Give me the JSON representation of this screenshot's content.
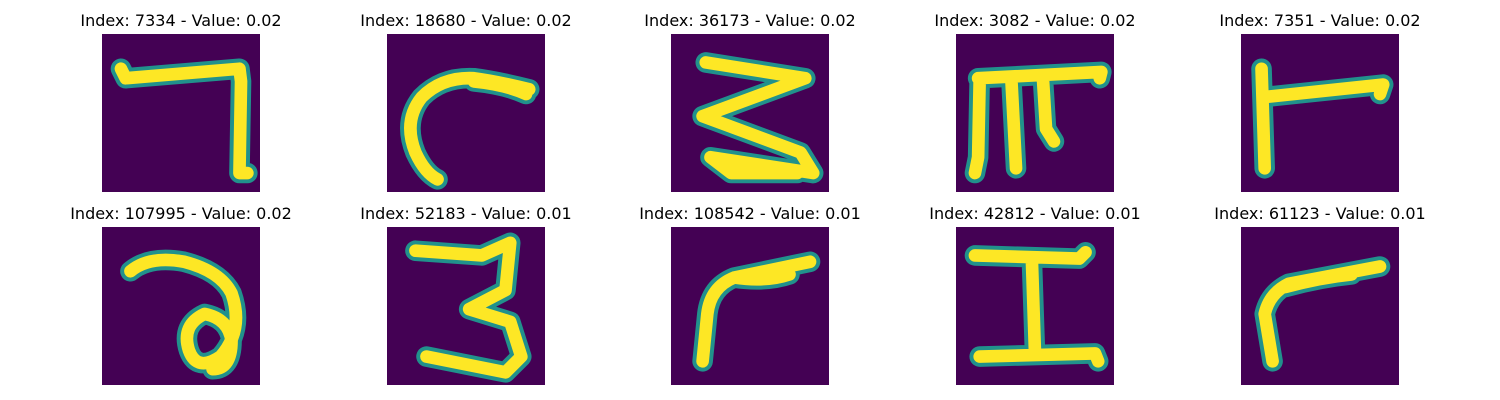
{
  "colors": {
    "background": "#440154",
    "stroke_edge": "#21918c",
    "stroke_core": "#fde725"
  },
  "panels": [
    {
      "title": "Index: 7334 - Value: 0.02",
      "glyph": "seven"
    },
    {
      "title": "Index: 18680 - Value: 0.02",
      "glyph": "c-hook"
    },
    {
      "title": "Index: 36173 - Value: 0.02",
      "glyph": "zigzag-three"
    },
    {
      "title": "Index: 3082 - Value: 0.02",
      "glyph": "pi"
    },
    {
      "title": "Index: 7351 - Value: 0.02",
      "glyph": "r-stroke"
    },
    {
      "title": "Index: 107995 - Value: 0.02",
      "glyph": "loop-a"
    },
    {
      "title": "Index: 52183 - Value: 0.01",
      "glyph": "three"
    },
    {
      "title": "Index: 108542 - Value: 0.01",
      "glyph": "r-curve"
    },
    {
      "title": "Index: 42812 - Value: 0.01",
      "glyph": "i-beam"
    },
    {
      "title": "Index: 61123 - Value: 0.01",
      "glyph": "r-small"
    }
  ]
}
